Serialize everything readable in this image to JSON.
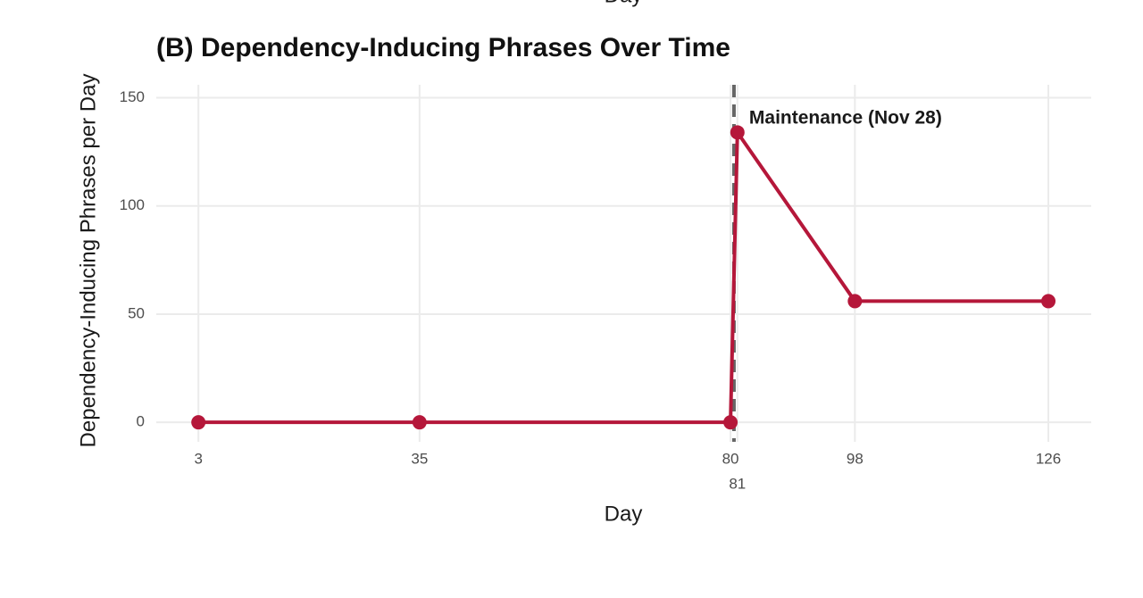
{
  "cropped_label": "Day",
  "chart_data": {
    "type": "line",
    "title": "(B) Dependency-Inducing Phrases Over Time",
    "x_label": "Day",
    "y_label": "Dependency-Inducing Phrases per Day",
    "x": [
      3,
      35,
      80,
      81,
      98,
      126
    ],
    "series": [
      {
        "color": "#b5173a",
        "values": [
          0,
          0,
          0,
          134,
          56,
          56
        ]
      }
    ],
    "xlim": [
      -3.1,
      132.2
    ],
    "ylim": [
      -9,
      156
    ],
    "xticks": [
      3,
      35,
      80,
      81,
      98,
      126
    ],
    "yticks": [
      0,
      50,
      100,
      150
    ],
    "grid": true,
    "vline": {
      "x": 80.5,
      "color": "#666666",
      "label": "Maintenance (Nov 28)"
    }
  }
}
